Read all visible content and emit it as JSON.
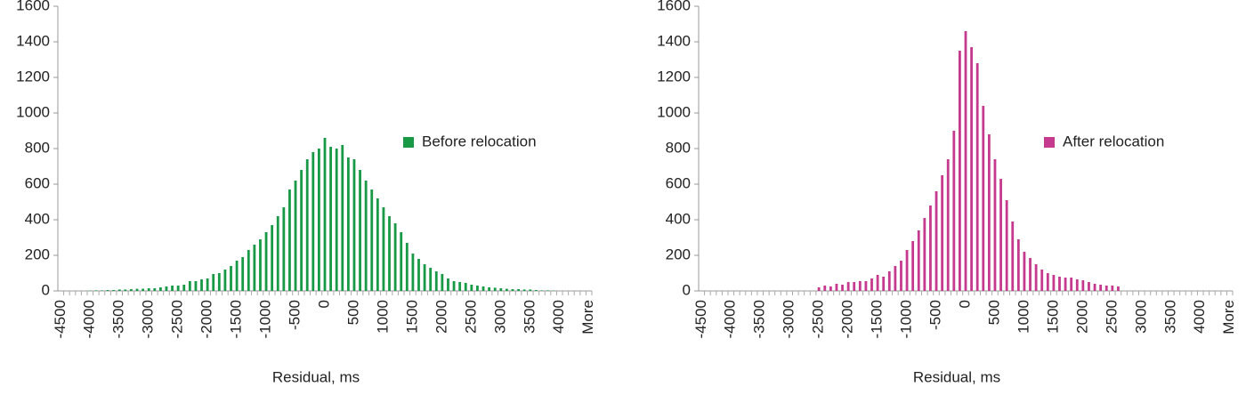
{
  "chart_data": [
    {
      "type": "bar",
      "xlabel": "Residual, ms",
      "legend": "right",
      "categories": [
        -4500,
        null,
        null,
        null,
        null,
        -4000,
        null,
        null,
        null,
        null,
        -3500,
        null,
        null,
        null,
        null,
        -3000,
        null,
        null,
        null,
        null,
        -2500,
        null,
        null,
        null,
        null,
        -2000,
        null,
        null,
        null,
        null,
        -1500,
        null,
        null,
        null,
        null,
        -1000,
        null,
        null,
        null,
        null,
        -500,
        null,
        null,
        null,
        null,
        0,
        null,
        null,
        null,
        null,
        500,
        null,
        null,
        null,
        null,
        1000,
        null,
        null,
        null,
        null,
        1500,
        null,
        null,
        null,
        null,
        2000,
        null,
        null,
        null,
        null,
        2500,
        null,
        null,
        null,
        null,
        3000,
        null,
        null,
        null,
        null,
        3500,
        null,
        null,
        null,
        null,
        4000,
        null,
        null,
        null,
        null,
        "More"
      ],
      "series": [
        {
          "name": "Before relocation",
          "color": "#179945",
          "values": [
            0,
            0,
            0,
            0,
            0,
            2,
            3,
            3,
            5,
            5,
            8,
            8,
            10,
            12,
            12,
            15,
            15,
            20,
            25,
            30,
            30,
            35,
            55,
            55,
            65,
            70,
            95,
            100,
            120,
            140,
            170,
            190,
            230,
            260,
            290,
            330,
            370,
            420,
            470,
            570,
            620,
            680,
            740,
            780,
            800,
            860,
            810,
            800,
            820,
            750,
            740,
            680,
            620,
            570,
            520,
            470,
            420,
            380,
            330,
            270,
            210,
            180,
            150,
            130,
            110,
            95,
            70,
            55,
            50,
            45,
            35,
            30,
            25,
            20,
            18,
            15,
            12,
            10,
            10,
            8,
            8,
            5,
            3,
            3,
            2,
            0,
            0,
            0,
            0,
            0,
            0
          ]
        }
      ],
      "ylim": [
        0,
        1600
      ],
      "yticks": [
        0,
        200,
        400,
        600,
        800,
        1000,
        1200,
        1400,
        1600
      ]
    },
    {
      "type": "bar",
      "xlabel": "Residual, ms",
      "legend": "right",
      "categories": [
        -4500,
        null,
        null,
        null,
        null,
        -4000,
        null,
        null,
        null,
        null,
        -3500,
        null,
        null,
        null,
        null,
        -3000,
        null,
        null,
        null,
        null,
        -2500,
        null,
        null,
        null,
        null,
        -2000,
        null,
        null,
        null,
        null,
        -1500,
        null,
        null,
        null,
        null,
        -1000,
        null,
        null,
        null,
        null,
        -500,
        null,
        null,
        null,
        null,
        0,
        null,
        null,
        null,
        null,
        500,
        null,
        null,
        null,
        null,
        1000,
        null,
        null,
        null,
        null,
        1500,
        null,
        null,
        null,
        null,
        2000,
        null,
        null,
        null,
        null,
        2500,
        null,
        null,
        null,
        null,
        3000,
        null,
        null,
        null,
        null,
        3500,
        null,
        null,
        null,
        null,
        4000,
        null,
        null,
        null,
        null,
        "More"
      ],
      "series": [
        {
          "name": "After relocation",
          "color": "#c53a8e",
          "values": [
            0,
            0,
            0,
            0,
            0,
            0,
            0,
            0,
            0,
            0,
            0,
            0,
            0,
            0,
            0,
            0,
            0,
            0,
            0,
            0,
            20,
            30,
            25,
            40,
            35,
            50,
            50,
            55,
            55,
            70,
            90,
            80,
            110,
            140,
            170,
            230,
            280,
            340,
            410,
            480,
            560,
            650,
            740,
            900,
            1350,
            1460,
            1370,
            1280,
            1040,
            880,
            740,
            630,
            510,
            390,
            290,
            220,
            185,
            150,
            120,
            100,
            90,
            80,
            75,
            75,
            65,
            60,
            50,
            40,
            35,
            30,
            30,
            25,
            0,
            0,
            0,
            0,
            0,
            0,
            0,
            0,
            0,
            0,
            0,
            0,
            0,
            0,
            0,
            0,
            0,
            0,
            0
          ]
        }
      ],
      "ylim": [
        0,
        1600
      ],
      "yticks": [
        0,
        200,
        400,
        600,
        800,
        1000,
        1200,
        1400,
        1600
      ]
    }
  ]
}
